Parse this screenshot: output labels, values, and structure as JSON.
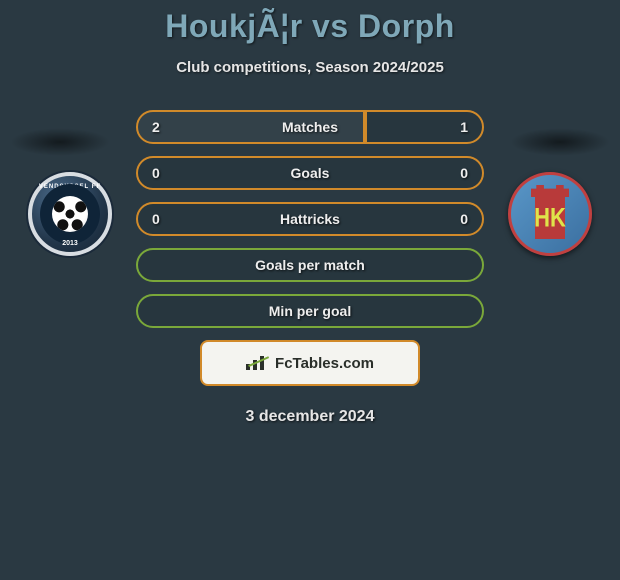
{
  "header": {
    "title": "HoukjÃ¦r vs Dorph",
    "subtitle": "Club competitions, Season 2024/2025"
  },
  "colors": {
    "background": "#2a3942",
    "title": "#7fa8b8",
    "orange_border": "#d18a2a",
    "green_border": "#7aa83a"
  },
  "badges": {
    "left": {
      "ring_text": "VENDSYSSEL FF",
      "year": "2013"
    },
    "right": {
      "letters": "HK"
    }
  },
  "stats": {
    "rows": [
      {
        "label": "Matches",
        "left": "2",
        "right": "1",
        "style": "orange",
        "left_fill_pct": 66,
        "right_fill_pct": 34,
        "highlight": "left"
      },
      {
        "label": "Goals",
        "left": "0",
        "right": "0",
        "style": "orange",
        "left_fill_pct": 0,
        "right_fill_pct": 0,
        "highlight": "none"
      },
      {
        "label": "Hattricks",
        "left": "0",
        "right": "0",
        "style": "orange",
        "left_fill_pct": 0,
        "right_fill_pct": 0,
        "highlight": "none"
      },
      {
        "label": "Goals per match",
        "left": "",
        "right": "",
        "style": "green",
        "left_fill_pct": 0,
        "right_fill_pct": 0,
        "highlight": "none"
      },
      {
        "label": "Min per goal",
        "left": "",
        "right": "",
        "style": "green",
        "left_fill_pct": 0,
        "right_fill_pct": 0,
        "highlight": "none"
      }
    ]
  },
  "footer": {
    "site": "FcTables.com",
    "date": "3 december 2024"
  }
}
